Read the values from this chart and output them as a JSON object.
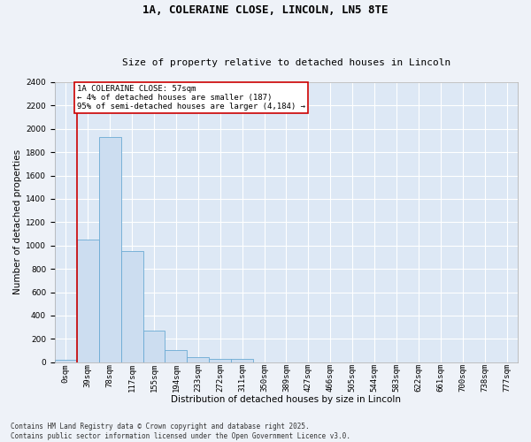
{
  "title_line1": "1A, COLERAINE CLOSE, LINCOLN, LN5 8TE",
  "title_line2": "Size of property relative to detached houses in Lincoln",
  "xlabel": "Distribution of detached houses by size in Lincoln",
  "ylabel": "Number of detached properties",
  "bar_color": "#ccddf0",
  "bar_edge_color": "#6aaad4",
  "bg_color": "#dde8f5",
  "grid_color": "#ffffff",
  "annotation_box_color": "#cc0000",
  "vline_color": "#cc0000",
  "fig_bg_color": "#eef2f8",
  "categories": [
    "0sqm",
    "39sqm",
    "78sqm",
    "117sqm",
    "155sqm",
    "194sqm",
    "233sqm",
    "272sqm",
    "311sqm",
    "350sqm",
    "389sqm",
    "427sqm",
    "466sqm",
    "505sqm",
    "544sqm",
    "583sqm",
    "622sqm",
    "661sqm",
    "700sqm",
    "738sqm",
    "777sqm"
  ],
  "values": [
    20,
    1050,
    1930,
    950,
    270,
    105,
    40,
    25,
    30,
    0,
    0,
    0,
    0,
    0,
    0,
    0,
    0,
    0,
    0,
    0,
    0
  ],
  "vline_x_idx": 1,
  "annotation_text": "1A COLERAINE CLOSE: 57sqm\n← 4% of detached houses are smaller (187)\n95% of semi-detached houses are larger (4,184) →",
  "ylim": [
    0,
    2400
  ],
  "yticks": [
    0,
    200,
    400,
    600,
    800,
    1000,
    1200,
    1400,
    1600,
    1800,
    2000,
    2200,
    2400
  ],
  "footnote": "Contains HM Land Registry data © Crown copyright and database right 2025.\nContains public sector information licensed under the Open Government Licence v3.0.",
  "title_fontsize": 9,
  "subtitle_fontsize": 8,
  "axis_label_fontsize": 7.5,
  "tick_fontsize": 6.5,
  "annotation_fontsize": 6.5,
  "footnote_fontsize": 5.5
}
